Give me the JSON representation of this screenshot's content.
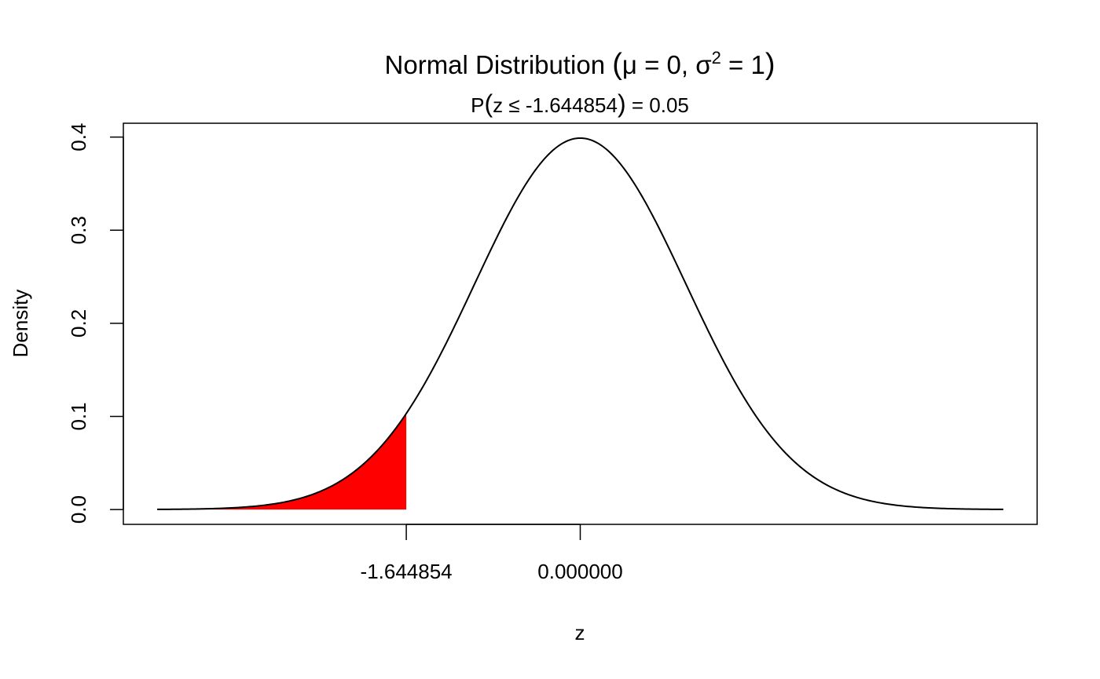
{
  "chart_data": {
    "type": "area",
    "title": {
      "prefix": "Normal Distribution ",
      "open_paren": "(",
      "mu_label": "μ = 0, σ",
      "superscript": "2",
      "var_label": " = 1",
      "close_paren": ")"
    },
    "subtitle": {
      "prefix": "P",
      "open_paren": "(",
      "body": "z ≤ -1.644854",
      "close_paren": ")",
      "suffix": " = 0.05"
    },
    "xlabel": "z",
    "ylabel": "Density",
    "distribution": {
      "name": "normal",
      "mean": 0,
      "variance": 1
    },
    "x_range": [
      -4,
      4
    ],
    "xlim": [
      -4.32,
      4.32
    ],
    "ylim": [
      -0.01596,
      0.41491
    ],
    "yticks": [
      0.0,
      0.1,
      0.2,
      0.3,
      0.4
    ],
    "ytick_labels": [
      "0.0",
      "0.1",
      "0.2",
      "0.3",
      "0.4"
    ],
    "xticks": [
      -1.644854,
      0.0
    ],
    "xtick_labels": [
      "-1.644854",
      "0.000000"
    ],
    "shaded_region": {
      "from": -4,
      "to": -1.644854,
      "probability": 0.05,
      "color": "#ff0000"
    },
    "line_color": "#000000",
    "grid": false,
    "legend": "none"
  }
}
